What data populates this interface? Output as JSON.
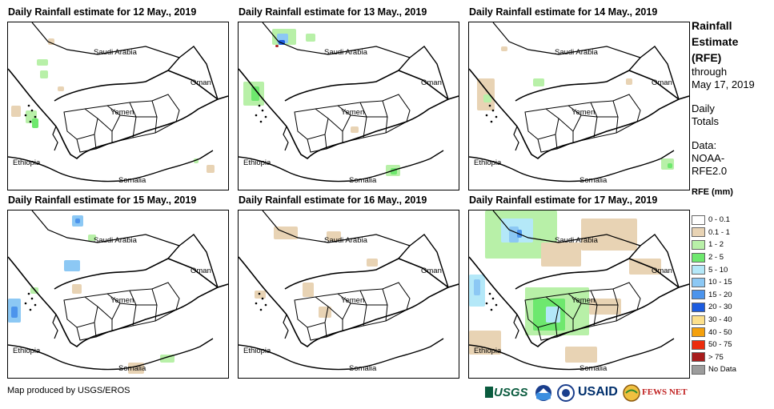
{
  "panels": [
    {
      "title": "Daily Rainfall estimate for 12 May., 2019",
      "labels": {
        "saudi": "Saudi Arabia",
        "oman": "Oman",
        "yemen": "Yemen",
        "ethiopia": "Ethiopia",
        "somalia": "Somalia"
      }
    },
    {
      "title": "Daily Rainfall estimate for 13 May., 2019",
      "labels": {
        "saudi": "Saudi Arabia",
        "oman": "Oman",
        "yemen": "Yemen",
        "ethiopia": "Ethiopia",
        "somalia": "Somalia"
      }
    },
    {
      "title": "Daily Rainfall estimate for 14 May., 2019",
      "labels": {
        "saudi": "Saudi Arabia",
        "oman": "Oman",
        "yemen": "Yemen",
        "ethiopia": "Ethiopia",
        "somalia": "Somalia"
      }
    },
    {
      "title": "Daily Rainfall estimate for 15 May., 2019",
      "labels": {
        "saudi": "Saudi Arabia",
        "oman": "Oman",
        "yemen": "Yemen",
        "ethiopia": "Ethiopia",
        "somalia": "Somalia"
      }
    },
    {
      "title": "Daily Rainfall estimate for 16 May., 2019",
      "labels": {
        "saudi": "Saudi Arabia",
        "oman": "Oman",
        "yemen": "Yemen",
        "ethiopia": "Ethiopia",
        "somalia": "Somalia"
      }
    },
    {
      "title": "Daily Rainfall estimate for 17 May., 2019",
      "labels": {
        "saudi": "Saudi Arabia",
        "oman": "Oman",
        "yemen": "Yemen",
        "ethiopia": "Ethiopia",
        "somalia": "Somalia"
      }
    }
  ],
  "legend": {
    "title_line1": "Rainfall",
    "title_line2": "Estimate",
    "title_line3": "(RFE)",
    "through": "through",
    "date": "May 17, 2019",
    "daily_line1": "Daily",
    "daily_line2": "Totals",
    "data_line1": "Data:",
    "data_line2": "NOAA-",
    "data_line3": "RFE2.0",
    "unit": "RFE (mm)",
    "classes": [
      {
        "label": "0 - 0.1",
        "color": "#ffffff"
      },
      {
        "label": "0.1 - 1",
        "color": "#e8d3b4"
      },
      {
        "label": "1 - 2",
        "color": "#b8f0a8"
      },
      {
        "label": "2 - 5",
        "color": "#6ee86e"
      },
      {
        "label": "5 - 10",
        "color": "#b4e8f8"
      },
      {
        "label": "10 - 15",
        "color": "#8cc8f4"
      },
      {
        "label": "15 - 20",
        "color": "#4c94ec"
      },
      {
        "label": "20 - 30",
        "color": "#1c5ce0"
      },
      {
        "label": "30 - 40",
        "color": "#fce08c"
      },
      {
        "label": "40 - 50",
        "color": "#f4a00c"
      },
      {
        "label": "50 - 75",
        "color": "#ec2c0c"
      },
      {
        "label": "> 75",
        "color": "#a81c1c"
      },
      {
        "label": "No Data",
        "color": "#9c9c9c"
      }
    ]
  },
  "footer": {
    "credit": "Map produced by USGS/EROS",
    "logo_usgs": "USGS",
    "logo_usaid": "USAID",
    "logo_fews": "FEWS NET"
  }
}
